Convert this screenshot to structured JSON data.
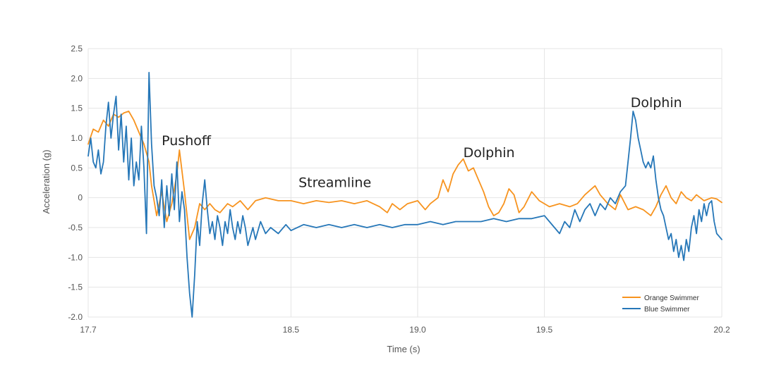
{
  "chart_data": {
    "type": "line",
    "title": "",
    "xlabel": "Time (s)",
    "ylabel": "Acceleration (g)",
    "xlim": [
      17.7,
      20.2
    ],
    "ylim": [
      -2.0,
      2.5
    ],
    "x_ticks": [
      "17.7",
      "18.5",
      "19.0",
      "19.5",
      "20.2"
    ],
    "x_tick_values": [
      17.7,
      18.5,
      19.0,
      19.5,
      20.2
    ],
    "y_ticks": [
      "2.5",
      "2.0",
      "1.5",
      "1.0",
      "0.5",
      "0",
      "-0.5",
      "-1.0",
      "-1.5",
      "-2.0"
    ],
    "y_tick_values": [
      2.5,
      2.0,
      1.5,
      1.0,
      0.5,
      0,
      -0.5,
      -1.0,
      -1.5,
      -2.0
    ],
    "grid": true,
    "legend_position": "bottom-right",
    "series": [
      {
        "name": "Orange Swimmer",
        "color": "#f7931e",
        "points": [
          [
            17.7,
            0.9
          ],
          [
            17.72,
            1.15
          ],
          [
            17.74,
            1.1
          ],
          [
            17.76,
            1.3
          ],
          [
            17.78,
            1.2
          ],
          [
            17.8,
            1.4
          ],
          [
            17.82,
            1.35
          ],
          [
            17.84,
            1.42
          ],
          [
            17.86,
            1.45
          ],
          [
            17.88,
            1.3
          ],
          [
            17.9,
            1.1
          ],
          [
            17.92,
            0.9
          ],
          [
            17.94,
            0.6
          ],
          [
            17.95,
            0.2
          ],
          [
            17.97,
            -0.3
          ],
          [
            17.99,
            0.1
          ],
          [
            18.01,
            -0.4
          ],
          [
            18.03,
            -0.1
          ],
          [
            18.05,
            0.4
          ],
          [
            18.06,
            0.8
          ],
          [
            18.08,
            0.1
          ],
          [
            18.1,
            -0.7
          ],
          [
            18.12,
            -0.5
          ],
          [
            18.14,
            -0.1
          ],
          [
            18.16,
            -0.2
          ],
          [
            18.18,
            -0.1
          ],
          [
            18.2,
            -0.2
          ],
          [
            18.22,
            -0.25
          ],
          [
            18.25,
            -0.1
          ],
          [
            18.27,
            -0.15
          ],
          [
            18.3,
            -0.05
          ],
          [
            18.33,
            -0.2
          ],
          [
            18.36,
            -0.05
          ],
          [
            18.4,
            0.0
          ],
          [
            18.45,
            -0.05
          ],
          [
            18.5,
            -0.05
          ],
          [
            18.55,
            -0.1
          ],
          [
            18.6,
            -0.05
          ],
          [
            18.65,
            -0.08
          ],
          [
            18.7,
            -0.05
          ],
          [
            18.75,
            -0.1
          ],
          [
            18.8,
            -0.05
          ],
          [
            18.85,
            -0.15
          ],
          [
            18.88,
            -0.25
          ],
          [
            18.9,
            -0.1
          ],
          [
            18.93,
            -0.2
          ],
          [
            18.96,
            -0.1
          ],
          [
            19.0,
            -0.05
          ],
          [
            19.03,
            -0.2
          ],
          [
            19.05,
            -0.1
          ],
          [
            19.08,
            0.0
          ],
          [
            19.1,
            0.3
          ],
          [
            19.12,
            0.1
          ],
          [
            19.14,
            0.4
          ],
          [
            19.16,
            0.55
          ],
          [
            19.18,
            0.65
          ],
          [
            19.2,
            0.45
          ],
          [
            19.22,
            0.5
          ],
          [
            19.24,
            0.3
          ],
          [
            19.26,
            0.1
          ],
          [
            19.28,
            -0.15
          ],
          [
            19.3,
            -0.3
          ],
          [
            19.32,
            -0.25
          ],
          [
            19.34,
            -0.1
          ],
          [
            19.36,
            0.15
          ],
          [
            19.38,
            0.05
          ],
          [
            19.4,
            -0.25
          ],
          [
            19.42,
            -0.15
          ],
          [
            19.45,
            0.1
          ],
          [
            19.48,
            -0.05
          ],
          [
            19.52,
            -0.15
          ],
          [
            19.56,
            -0.1
          ],
          [
            19.6,
            -0.15
          ],
          [
            19.63,
            -0.1
          ],
          [
            19.66,
            0.05
          ],
          [
            19.7,
            0.2
          ],
          [
            19.72,
            0.05
          ],
          [
            19.75,
            -0.1
          ],
          [
            19.78,
            -0.2
          ],
          [
            19.8,
            0.05
          ],
          [
            19.83,
            -0.2
          ],
          [
            19.86,
            -0.15
          ],
          [
            19.89,
            -0.2
          ],
          [
            19.92,
            -0.3
          ],
          [
            19.94,
            -0.15
          ],
          [
            19.96,
            0.05
          ],
          [
            19.98,
            0.2
          ],
          [
            20.0,
            0.0
          ],
          [
            20.02,
            -0.1
          ],
          [
            20.04,
            0.1
          ],
          [
            20.06,
            0.0
          ],
          [
            20.08,
            -0.05
          ],
          [
            20.1,
            0.05
          ],
          [
            20.13,
            -0.05
          ],
          [
            20.16,
            0.0
          ],
          [
            20.18,
            -0.02
          ],
          [
            20.2,
            -0.08
          ]
        ]
      },
      {
        "name": "Blue Swimmer",
        "color": "#2677b8",
        "points": [
          [
            17.7,
            0.7
          ],
          [
            17.71,
            1.0
          ],
          [
            17.72,
            0.6
          ],
          [
            17.73,
            0.5
          ],
          [
            17.74,
            0.8
          ],
          [
            17.75,
            0.4
          ],
          [
            17.76,
            0.6
          ],
          [
            17.77,
            1.2
          ],
          [
            17.78,
            1.6
          ],
          [
            17.79,
            1.0
          ],
          [
            17.8,
            1.4
          ],
          [
            17.81,
            1.7
          ],
          [
            17.82,
            0.8
          ],
          [
            17.83,
            1.4
          ],
          [
            17.84,
            0.6
          ],
          [
            17.85,
            1.2
          ],
          [
            17.86,
            0.3
          ],
          [
            17.87,
            1.0
          ],
          [
            17.88,
            0.2
          ],
          [
            17.89,
            0.6
          ],
          [
            17.9,
            0.3
          ],
          [
            17.91,
            1.2
          ],
          [
            17.92,
            0.5
          ],
          [
            17.93,
            -0.6
          ],
          [
            17.94,
            2.1
          ],
          [
            17.95,
            0.9
          ],
          [
            17.96,
            0.2
          ],
          [
            17.97,
            0.0
          ],
          [
            17.98,
            -0.3
          ],
          [
            17.99,
            0.3
          ],
          [
            18.0,
            -0.5
          ],
          [
            18.01,
            0.2
          ],
          [
            18.02,
            -0.3
          ],
          [
            18.03,
            0.4
          ],
          [
            18.04,
            -0.2
          ],
          [
            18.05,
            0.6
          ],
          [
            18.06,
            -0.4
          ],
          [
            18.07,
            0.1
          ],
          [
            18.08,
            -0.2
          ],
          [
            18.09,
            -1.0
          ],
          [
            18.1,
            -1.6
          ],
          [
            18.11,
            -2.0
          ],
          [
            18.12,
            -1.3
          ],
          [
            18.13,
            -0.4
          ],
          [
            18.14,
            -0.8
          ],
          [
            18.15,
            -0.1
          ],
          [
            18.16,
            0.3
          ],
          [
            18.17,
            -0.2
          ],
          [
            18.18,
            -0.6
          ],
          [
            18.19,
            -0.4
          ],
          [
            18.2,
            -0.7
          ],
          [
            18.21,
            -0.3
          ],
          [
            18.22,
            -0.5
          ],
          [
            18.23,
            -0.8
          ],
          [
            18.24,
            -0.4
          ],
          [
            18.25,
            -0.6
          ],
          [
            18.26,
            -0.2
          ],
          [
            18.27,
            -0.5
          ],
          [
            18.28,
            -0.7
          ],
          [
            18.29,
            -0.4
          ],
          [
            18.3,
            -0.6
          ],
          [
            18.31,
            -0.3
          ],
          [
            18.32,
            -0.5
          ],
          [
            18.33,
            -0.8
          ],
          [
            18.35,
            -0.5
          ],
          [
            18.36,
            -0.7
          ],
          [
            18.38,
            -0.4
          ],
          [
            18.4,
            -0.6
          ],
          [
            18.42,
            -0.5
          ],
          [
            18.45,
            -0.6
          ],
          [
            18.48,
            -0.45
          ],
          [
            18.5,
            -0.55
          ],
          [
            18.55,
            -0.45
          ],
          [
            18.6,
            -0.5
          ],
          [
            18.65,
            -0.45
          ],
          [
            18.7,
            -0.5
          ],
          [
            18.75,
            -0.45
          ],
          [
            18.8,
            -0.5
          ],
          [
            18.85,
            -0.45
          ],
          [
            18.9,
            -0.5
          ],
          [
            18.95,
            -0.45
          ],
          [
            19.0,
            -0.45
          ],
          [
            19.05,
            -0.4
          ],
          [
            19.1,
            -0.45
          ],
          [
            19.15,
            -0.4
          ],
          [
            19.2,
            -0.4
          ],
          [
            19.25,
            -0.4
          ],
          [
            19.3,
            -0.35
          ],
          [
            19.35,
            -0.4
          ],
          [
            19.4,
            -0.35
          ],
          [
            19.45,
            -0.35
          ],
          [
            19.5,
            -0.3
          ],
          [
            19.52,
            -0.4
          ],
          [
            19.54,
            -0.5
          ],
          [
            19.56,
            -0.6
          ],
          [
            19.58,
            -0.4
          ],
          [
            19.6,
            -0.5
          ],
          [
            19.62,
            -0.2
          ],
          [
            19.64,
            -0.4
          ],
          [
            19.66,
            -0.2
          ],
          [
            19.68,
            -0.1
          ],
          [
            19.7,
            -0.3
          ],
          [
            19.72,
            -0.1
          ],
          [
            19.74,
            -0.2
          ],
          [
            19.76,
            0.0
          ],
          [
            19.78,
            -0.1
          ],
          [
            19.8,
            0.1
          ],
          [
            19.82,
            0.2
          ],
          [
            19.83,
            0.6
          ],
          [
            19.84,
            1.0
          ],
          [
            19.85,
            1.45
          ],
          [
            19.86,
            1.3
          ],
          [
            19.87,
            1.0
          ],
          [
            19.88,
            0.8
          ],
          [
            19.89,
            0.6
          ],
          [
            19.9,
            0.5
          ],
          [
            19.91,
            0.6
          ],
          [
            19.92,
            0.5
          ],
          [
            19.93,
            0.7
          ],
          [
            19.94,
            0.3
          ],
          [
            19.95,
            0.0
          ],
          [
            19.96,
            -0.2
          ],
          [
            19.97,
            -0.3
          ],
          [
            19.98,
            -0.5
          ],
          [
            19.99,
            -0.7
          ],
          [
            20.0,
            -0.6
          ],
          [
            20.01,
            -0.9
          ],
          [
            20.02,
            -0.7
          ],
          [
            20.03,
            -1.0
          ],
          [
            20.04,
            -0.8
          ],
          [
            20.05,
            -1.05
          ],
          [
            20.06,
            -0.7
          ],
          [
            20.07,
            -0.9
          ],
          [
            20.08,
            -0.5
          ],
          [
            20.09,
            -0.3
          ],
          [
            20.1,
            -0.6
          ],
          [
            20.11,
            -0.2
          ],
          [
            20.12,
            -0.4
          ],
          [
            20.13,
            -0.1
          ],
          [
            20.14,
            -0.3
          ],
          [
            20.15,
            -0.1
          ],
          [
            20.16,
            -0.05
          ],
          [
            20.17,
            -0.4
          ],
          [
            20.18,
            -0.6
          ],
          [
            20.19,
            -0.65
          ],
          [
            20.2,
            -0.7
          ]
        ]
      }
    ],
    "annotations": [
      {
        "text": "Pushoff",
        "x": 17.99,
        "y": 0.88
      },
      {
        "text": "Streamline",
        "x": 18.53,
        "y": 0.18
      },
      {
        "text": "Dolphin",
        "x": 19.18,
        "y": 0.68
      },
      {
        "text": "Dolphin",
        "x": 19.84,
        "y": 1.52
      }
    ]
  }
}
